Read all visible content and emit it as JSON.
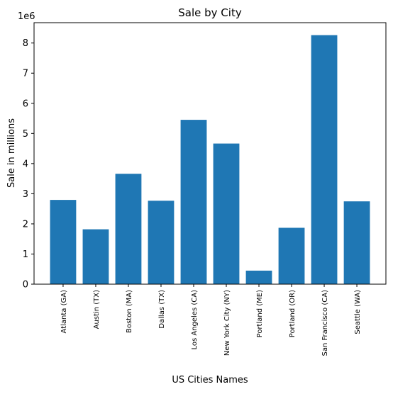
{
  "chart_data": {
    "type": "bar",
    "title": "Sale by City",
    "xlabel": "US Cities Names",
    "ylabel": "Sale in millions",
    "offset_text": "1e6",
    "categories": [
      "Atlanta (GA)",
      "Austin (TX)",
      "Boston (MA)",
      "Dallas (TX)",
      "Los Angeles (CA)",
      "New York City (NY)",
      "Portland (ME)",
      "Portland (OR)",
      "San Francisco (CA)",
      "Seattle (WA)"
    ],
    "values": [
      2795000,
      1820000,
      3662000,
      2768000,
      5452000,
      4665000,
      449000,
      1870000,
      8262000,
      2747000
    ],
    "yticks": [
      0,
      1,
      2,
      3,
      4,
      5,
      6,
      7,
      8
    ],
    "ytick_labels": [
      "0",
      "1",
      "2",
      "3",
      "4",
      "5",
      "6",
      "7",
      "8"
    ],
    "y_scale": 1000000,
    "ylim": [
      0,
      8675000
    ],
    "bar_color": "#1f77b4",
    "grid": false,
    "legend": "none"
  }
}
